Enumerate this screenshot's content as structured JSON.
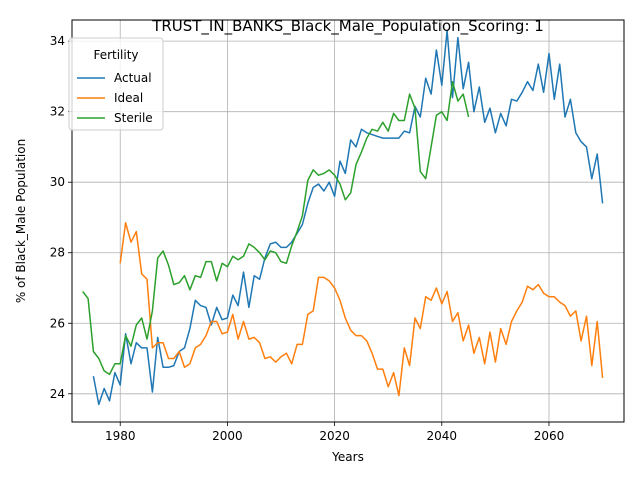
{
  "chart_data": {
    "type": "line",
    "title": "TRUST_IN_BANKS_Black_Male_Population_Scoring: 1",
    "xlabel": "Years",
    "ylabel": "% of Black_Male Population",
    "xlim": [
      1971,
      2074
    ],
    "ylim": [
      23.2,
      34.6
    ],
    "xticks": [
      1980,
      2000,
      2020,
      2040,
      2060
    ],
    "yticks": [
      24,
      26,
      28,
      30,
      32,
      34
    ],
    "grid": true,
    "legend": {
      "title": "Fertility",
      "position": "top-left"
    },
    "series": [
      {
        "name": "Actual",
        "color": "#1f77b4",
        "x": [
          1975,
          1976,
          1977,
          1978,
          1979,
          1980,
          1981,
          1982,
          1983,
          1984,
          1985,
          1986,
          1987,
          1988,
          1989,
          1990,
          1991,
          1992,
          1993,
          1994,
          1995,
          1996,
          1997,
          1998,
          1999,
          2000,
          2001,
          2002,
          2003,
          2004,
          2005,
          2006,
          2007,
          2008,
          2009,
          2010,
          2011,
          2012,
          2013,
          2014,
          2015,
          2016,
          2017,
          2018,
          2019,
          2020,
          2021,
          2022,
          2023,
          2024,
          2025,
          2026,
          2027,
          2028,
          2029,
          2030,
          2031,
          2032,
          2033,
          2034,
          2035,
          2036,
          2037,
          2038,
          2039,
          2040,
          2041,
          2042,
          2043,
          2044,
          2045,
          2046,
          2047,
          2048,
          2049,
          2050,
          2051,
          2052,
          2053,
          2054,
          2055,
          2056,
          2057,
          2058,
          2059,
          2060,
          2061,
          2062,
          2063,
          2064,
          2065,
          2066,
          2067,
          2068,
          2069,
          2070
        ],
        "values": [
          24.5,
          23.7,
          24.15,
          23.8,
          24.6,
          24.25,
          25.7,
          24.85,
          25.45,
          25.3,
          25.3,
          24.05,
          25.6,
          24.75,
          24.75,
          24.8,
          25.2,
          25.3,
          25.85,
          26.65,
          26.5,
          26.45,
          25.95,
          26.45,
          26.1,
          26.15,
          26.8,
          26.5,
          27.45,
          26.45,
          27.35,
          27.25,
          27.85,
          28.25,
          28.3,
          28.15,
          28.15,
          28.3,
          28.55,
          28.8,
          29.4,
          29.85,
          29.95,
          29.75,
          30.0,
          29.6,
          30.6,
          30.25,
          31.2,
          31.0,
          31.5,
          31.4,
          31.35,
          31.3,
          31.25,
          31.25,
          31.25,
          31.25,
          31.45,
          31.4,
          32.15,
          31.85,
          32.95,
          32.5,
          33.75,
          32.75,
          34.3,
          32.4,
          34.1,
          32.65,
          33.4,
          32.0,
          32.7,
          31.7,
          32.1,
          31.4,
          31.95,
          31.6,
          32.35,
          32.3,
          32.55,
          32.85,
          32.6,
          33.35,
          32.55,
          33.65,
          32.35,
          33.35,
          31.85,
          32.35,
          31.4,
          31.15,
          31.0,
          30.1,
          30.8,
          29.4
        ]
      },
      {
        "name": "Ideal",
        "color": "#ff7f0e",
        "x": [
          1980,
          1981,
          1982,
          1983,
          1984,
          1985,
          1986,
          1987,
          1988,
          1989,
          1990,
          1991,
          1992,
          1993,
          1994,
          1995,
          1996,
          1997,
          1998,
          1999,
          2000,
          2001,
          2002,
          2003,
          2004,
          2005,
          2006,
          2007,
          2008,
          2009,
          2010,
          2011,
          2012,
          2013,
          2014,
          2015,
          2016,
          2017,
          2018,
          2019,
          2020,
          2021,
          2022,
          2023,
          2024,
          2025,
          2026,
          2027,
          2028,
          2029,
          2030,
          2031,
          2032,
          2033,
          2034,
          2035,
          2036,
          2037,
          2038,
          2039,
          2040,
          2041,
          2042,
          2043,
          2044,
          2045,
          2046,
          2047,
          2048,
          2049,
          2050,
          2051,
          2052,
          2053,
          2054,
          2055,
          2056,
          2057,
          2058,
          2059,
          2060,
          2061,
          2062,
          2063,
          2064,
          2065,
          2066,
          2067,
          2068,
          2069,
          2070
        ],
        "values": [
          27.7,
          28.85,
          28.3,
          28.6,
          27.4,
          27.25,
          25.3,
          25.45,
          25.45,
          25.0,
          25.0,
          25.2,
          24.75,
          24.85,
          25.3,
          25.4,
          25.65,
          26.05,
          26.05,
          25.7,
          25.75,
          26.25,
          25.55,
          26.05,
          25.55,
          25.6,
          25.45,
          25.0,
          25.05,
          24.9,
          25.05,
          25.15,
          24.85,
          25.4,
          25.4,
          26.25,
          26.35,
          27.3,
          27.3,
          27.2,
          27.0,
          26.65,
          26.15,
          25.8,
          25.65,
          25.65,
          25.5,
          25.15,
          24.7,
          24.7,
          24.2,
          24.6,
          23.95,
          25.3,
          24.8,
          26.15,
          25.85,
          26.75,
          26.65,
          27.0,
          26.55,
          26.9,
          26.05,
          26.3,
          25.5,
          25.95,
          25.15,
          25.6,
          24.85,
          25.75,
          24.9,
          25.85,
          25.4,
          26.05,
          26.35,
          26.6,
          27.05,
          26.95,
          27.1,
          26.85,
          26.75,
          26.75,
          26.6,
          26.5,
          26.2,
          26.35,
          25.5,
          26.2,
          24.8,
          26.05,
          24.45
        ]
      },
      {
        "name": "Sterile",
        "color": "#2ca02c",
        "x": [
          1973,
          1974,
          1975,
          1976,
          1977,
          1978,
          1979,
          1980,
          1981,
          1982,
          1983,
          1984,
          1985,
          1986,
          1987,
          1988,
          1989,
          1990,
          1991,
          1992,
          1993,
          1994,
          1995,
          1996,
          1997,
          1998,
          1999,
          2000,
          2001,
          2002,
          2003,
          2004,
          2005,
          2006,
          2007,
          2008,
          2009,
          2010,
          2011,
          2012,
          2013,
          2014,
          2015,
          2016,
          2017,
          2018,
          2019,
          2020,
          2021,
          2022,
          2023,
          2024,
          2025,
          2026,
          2027,
          2028,
          2029,
          2030,
          2031,
          2032,
          2033,
          2034,
          2035,
          2036,
          2037,
          2038,
          2039,
          2040,
          2041,
          2042,
          2043,
          2044,
          2045
        ],
        "values": [
          26.9,
          26.7,
          25.2,
          25.0,
          24.65,
          24.55,
          24.85,
          24.85,
          25.65,
          25.35,
          25.95,
          26.15,
          25.55,
          26.35,
          27.85,
          28.05,
          27.65,
          27.1,
          27.15,
          27.35,
          26.95,
          27.35,
          27.3,
          27.75,
          27.75,
          27.2,
          27.7,
          27.6,
          27.9,
          27.8,
          27.9,
          28.25,
          28.15,
          28.0,
          27.8,
          28.05,
          28.0,
          27.75,
          27.7,
          28.2,
          28.6,
          29.05,
          30.05,
          30.35,
          30.2,
          30.25,
          30.35,
          30.2,
          29.95,
          29.5,
          29.7,
          30.5,
          30.85,
          31.25,
          31.5,
          31.45,
          31.7,
          31.45,
          31.95,
          31.75,
          31.75,
          32.5,
          32.1,
          30.3,
          30.1,
          31.0,
          31.9,
          32.0,
          31.75,
          32.85,
          32.3,
          32.5,
          31.85
        ]
      }
    ]
  }
}
